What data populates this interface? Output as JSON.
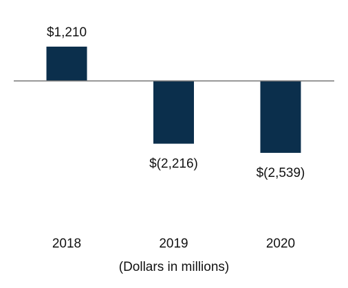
{
  "chart_data": {
    "type": "bar",
    "categories": [
      "2018",
      "2019",
      "2020"
    ],
    "values": [
      1210,
      -2216,
      -2539
    ],
    "value_labels": [
      "$1,210",
      "$(2,216)",
      "$(2,539)"
    ],
    "color": "#0b2f4c",
    "x_label": "(Dollars in millions)"
  }
}
